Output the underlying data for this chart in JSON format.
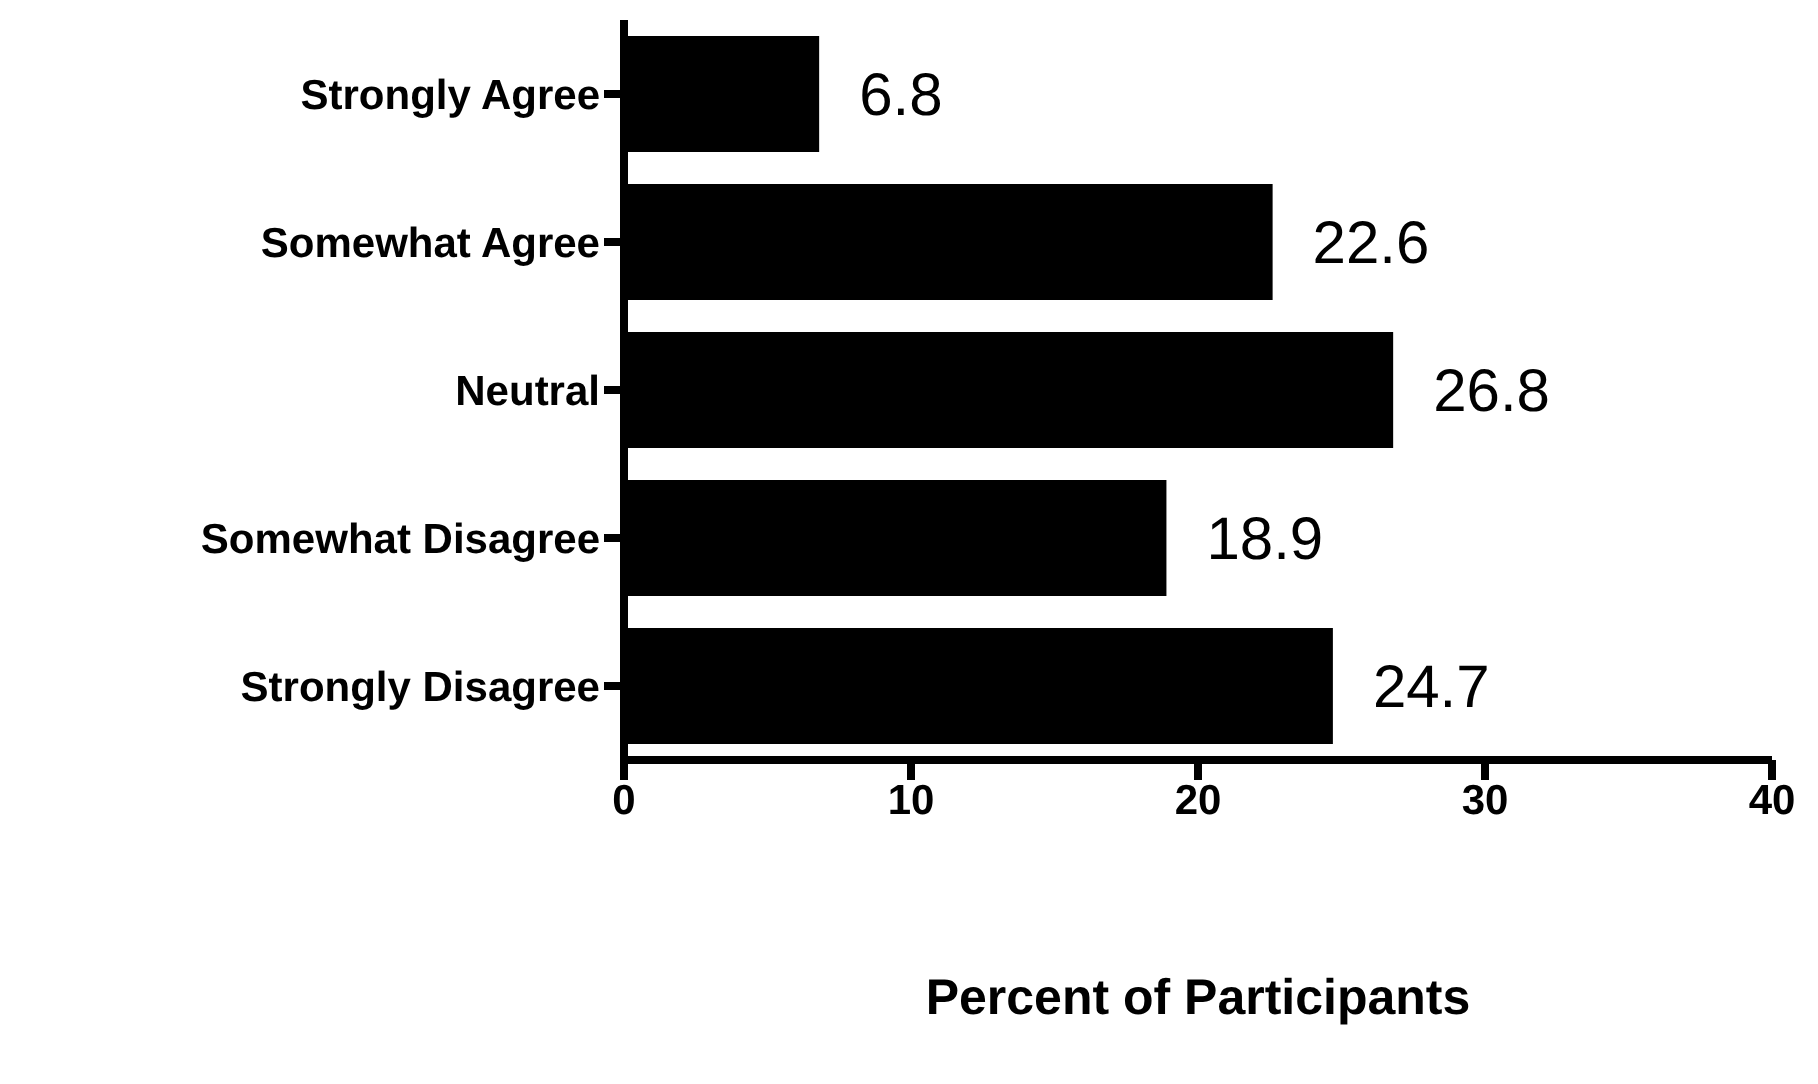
{
  "chart_data": {
    "type": "bar",
    "orientation": "horizontal",
    "xlabel": "Percent of Participants",
    "categories": [
      "Strongly Agree",
      "Somewhat Agree",
      "Neutral",
      "Somewhat Disagree",
      "Strongly Disagree"
    ],
    "values": [
      6.8,
      22.6,
      26.8,
      18.9,
      24.7
    ],
    "color": "#000000",
    "xlim": [
      0,
      40
    ],
    "xticks": [
      0,
      10,
      20,
      30,
      40
    ],
    "data_labels": true,
    "grid": false,
    "legend": false
  }
}
